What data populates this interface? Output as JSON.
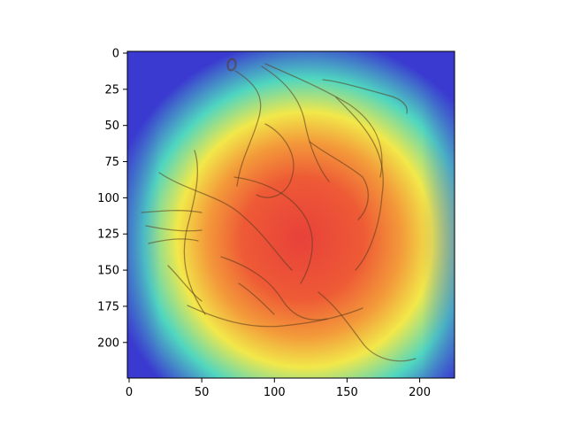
{
  "chart_data": {
    "type": "heatmap",
    "title": "",
    "xlabel": "",
    "ylabel": "",
    "xlim": [
      0,
      224
    ],
    "ylim": [
      224,
      0
    ],
    "x_ticks": [
      0,
      50,
      100,
      150,
      200
    ],
    "y_ticks": [
      0,
      25,
      50,
      75,
      100,
      125,
      150,
      175,
      200
    ],
    "colormap": "jet",
    "grid": false,
    "legend": "none",
    "image_content": "attention heatmap overlaid on a sepia pen sketch of a crouching figure",
    "heat_peak_region": {
      "x": [
        70,
        160
      ],
      "y": [
        75,
        200
      ]
    },
    "colors": {
      "low": "#3a3ad0",
      "mid_low": "#4fd6c0",
      "mid": "#f2e84a",
      "mid_high": "#f39a3a",
      "high": "#e8413a",
      "sketch": "#5a3a1e"
    }
  }
}
